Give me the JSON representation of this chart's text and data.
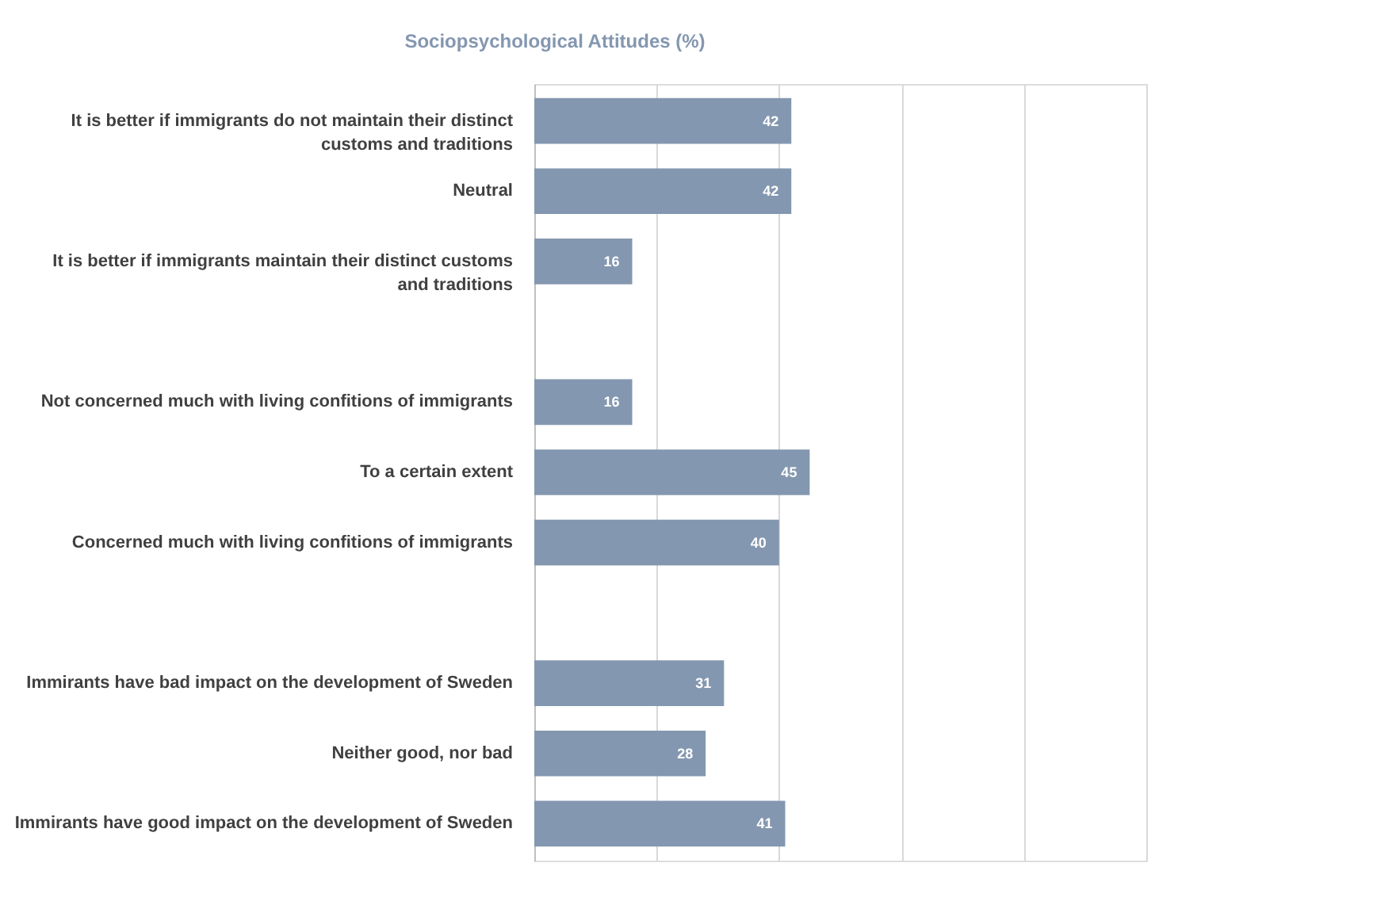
{
  "chart_data": {
    "type": "bar",
    "orientation": "horizontal",
    "title": "Sociopsychological Attitudes (%)",
    "categories": [
      "It is better if immigrants do not maintain their distinct customs and traditions",
      "Neutral",
      "It is better if immigrants maintain their distinct customs and traditions",
      null,
      "Not concerned much with living confitions of immigrants",
      "To a certain extent",
      "Concerned much with living confitions of immigrants",
      null,
      "Immirants have bad impact on the development of Sweden",
      "Neither good, nor bad",
      "Immirants have good impact on the development of Sweden"
    ],
    "values": [
      42,
      42,
      16,
      null,
      16,
      45,
      40,
      null,
      31,
      28,
      41
    ],
    "color": "#8497b0",
    "xlim": [
      0,
      100
    ],
    "xticks": [
      {
        "value": 0,
        "label": null
      },
      {
        "value": 20,
        "label": null
      },
      {
        "value": 40,
        "label": null
      },
      {
        "value": 60,
        "label": null
      },
      {
        "value": 80,
        "label": null
      },
      {
        "value": 100,
        "label": null
      }
    ],
    "tick_labels": "y",
    "grid": "x",
    "data_labels": true
  }
}
